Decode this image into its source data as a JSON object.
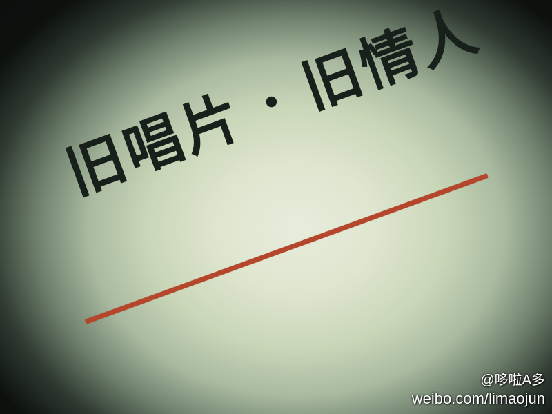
{
  "photo": {
    "title": "旧唱片 · 旧情人",
    "underline_color": "#b5462b",
    "paper_color": "#dfe6cf",
    "text_color": "#17201a"
  },
  "watermark": {
    "handle": "@哆啦A多",
    "url": "weibo.com/limaojun"
  }
}
